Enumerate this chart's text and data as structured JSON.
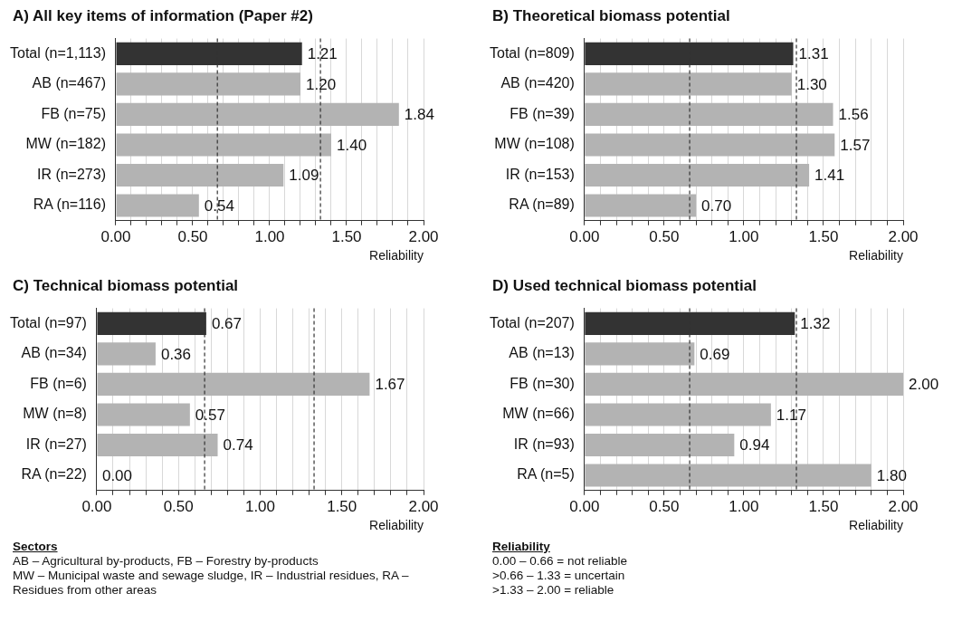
{
  "chart_data": [
    {
      "type": "bar",
      "orientation": "horizontal",
      "title": "A) All key items of information (Paper #2)",
      "xlabel": "Reliability",
      "categories": [
        "Total (n=1,113)",
        "AB (n=467)",
        "FB (n=75)",
        "MW (n=182)",
        "IR (n=273)",
        "RA (n=116)"
      ],
      "values": [
        1.21,
        1.2,
        1.84,
        1.4,
        1.09,
        0.54
      ],
      "value_labels": [
        "1.21",
        "1.20",
        "1.84",
        "1.40",
        "1.09",
        "0.54"
      ],
      "colors": [
        "#333333",
        "#b3b3b3",
        "#b3b3b3",
        "#b3b3b3",
        "#b3b3b3",
        "#b3b3b3"
      ],
      "xlim": [
        0,
        2
      ],
      "xticks": [
        {
          "value": 0,
          "label": "0.00"
        },
        {
          "value": 0.1,
          "label": null
        },
        {
          "value": 0.2,
          "label": null
        },
        {
          "value": 0.3,
          "label": null
        },
        {
          "value": 0.4,
          "label": null
        },
        {
          "value": 0.5,
          "label": "0.50"
        },
        {
          "value": 0.6,
          "label": null
        },
        {
          "value": 0.7,
          "label": null
        },
        {
          "value": 0.8,
          "label": null
        },
        {
          "value": 0.9,
          "label": null
        },
        {
          "value": 1,
          "label": "1.00"
        },
        {
          "value": 1.1,
          "label": null
        },
        {
          "value": 1.2,
          "label": null
        },
        {
          "value": 1.3,
          "label": null
        },
        {
          "value": 1.4,
          "label": null
        },
        {
          "value": 1.5,
          "label": "1.50"
        },
        {
          "value": 1.6,
          "label": null
        },
        {
          "value": 1.7,
          "label": null
        },
        {
          "value": 1.8,
          "label": null
        },
        {
          "value": 1.9,
          "label": null
        },
        {
          "value": 2,
          "label": "2.00"
        }
      ],
      "grid": "x",
      "legend": false,
      "ref_lines": [
        {
          "axis": "x",
          "value": 0.66,
          "color": "#333333",
          "line_style": "dashed"
        },
        {
          "axis": "x",
          "value": 1.33,
          "color": "#333333",
          "line_style": "dashed"
        }
      ]
    },
    {
      "type": "bar",
      "orientation": "horizontal",
      "title": "B) Theoretical biomass potential",
      "xlabel": "Reliability",
      "categories": [
        "Total (n=809)",
        "AB (n=420)",
        "FB (n=39)",
        "MW (n=108)",
        "IR (n=153)",
        "RA (n=89)"
      ],
      "values": [
        1.31,
        1.3,
        1.56,
        1.57,
        1.41,
        0.7
      ],
      "value_labels": [
        "1.31",
        "1.30",
        "1.56",
        "1.57",
        "1.41",
        "0.70"
      ],
      "colors": [
        "#333333",
        "#b3b3b3",
        "#b3b3b3",
        "#b3b3b3",
        "#b3b3b3",
        "#b3b3b3"
      ],
      "xlim": [
        0,
        2
      ],
      "xticks": [
        {
          "value": 0,
          "label": "0.00"
        },
        {
          "value": 0.1,
          "label": null
        },
        {
          "value": 0.2,
          "label": null
        },
        {
          "value": 0.3,
          "label": null
        },
        {
          "value": 0.4,
          "label": null
        },
        {
          "value": 0.5,
          "label": "0.50"
        },
        {
          "value": 0.6,
          "label": null
        },
        {
          "value": 0.7,
          "label": null
        },
        {
          "value": 0.8,
          "label": null
        },
        {
          "value": 0.9,
          "label": null
        },
        {
          "value": 1,
          "label": "1.00"
        },
        {
          "value": 1.1,
          "label": null
        },
        {
          "value": 1.2,
          "label": null
        },
        {
          "value": 1.3,
          "label": null
        },
        {
          "value": 1.4,
          "label": null
        },
        {
          "value": 1.5,
          "label": "1.50"
        },
        {
          "value": 1.6,
          "label": null
        },
        {
          "value": 1.7,
          "label": null
        },
        {
          "value": 1.8,
          "label": null
        },
        {
          "value": 1.9,
          "label": null
        },
        {
          "value": 2,
          "label": "2.00"
        }
      ],
      "grid": "x",
      "legend": false,
      "ref_lines": [
        {
          "axis": "x",
          "value": 0.66,
          "color": "#333333",
          "line_style": "dashed"
        },
        {
          "axis": "x",
          "value": 1.33,
          "color": "#333333",
          "line_style": "dashed"
        }
      ]
    },
    {
      "type": "bar",
      "orientation": "horizontal",
      "title": "C) Technical biomass potential",
      "xlabel": "Reliability",
      "categories": [
        "Total (n=97)",
        "AB (n=34)",
        "FB (n=6)",
        "MW (n=8)",
        "IR (n=27)",
        "RA (n=22)"
      ],
      "values": [
        0.67,
        0.36,
        1.67,
        0.57,
        0.74,
        0.0
      ],
      "value_labels": [
        "0.67",
        "0.36",
        "1.67",
        "0.57",
        "0.74",
        "0.00"
      ],
      "colors": [
        "#333333",
        "#b3b3b3",
        "#b3b3b3",
        "#b3b3b3",
        "#b3b3b3",
        "#b3b3b3"
      ],
      "xlim": [
        0,
        2
      ],
      "xticks": [
        {
          "value": 0,
          "label": "0.00"
        },
        {
          "value": 0.1,
          "label": null
        },
        {
          "value": 0.2,
          "label": null
        },
        {
          "value": 0.3,
          "label": null
        },
        {
          "value": 0.4,
          "label": null
        },
        {
          "value": 0.5,
          "label": "0.50"
        },
        {
          "value": 0.6,
          "label": null
        },
        {
          "value": 0.7,
          "label": null
        },
        {
          "value": 0.8,
          "label": null
        },
        {
          "value": 0.9,
          "label": null
        },
        {
          "value": 1,
          "label": "1.00"
        },
        {
          "value": 1.1,
          "label": null
        },
        {
          "value": 1.2,
          "label": null
        },
        {
          "value": 1.3,
          "label": null
        },
        {
          "value": 1.4,
          "label": null
        },
        {
          "value": 1.5,
          "label": "1.50"
        },
        {
          "value": 1.6,
          "label": null
        },
        {
          "value": 1.7,
          "label": null
        },
        {
          "value": 1.8,
          "label": null
        },
        {
          "value": 1.9,
          "label": null
        },
        {
          "value": 2,
          "label": "2.00"
        }
      ],
      "grid": "x",
      "legend": false,
      "ref_lines": [
        {
          "axis": "x",
          "value": 0.66,
          "color": "#333333",
          "line_style": "dashed"
        },
        {
          "axis": "x",
          "value": 1.33,
          "color": "#333333",
          "line_style": "dashed"
        }
      ],
      "annotations": [
        "Sectors",
        "AB – Agricultural by-products, FB – Forestry by-products",
        "MW – Municipal waste and sewage sludge, IR – Industrial residues, RA – Residues from other areas"
      ]
    },
    {
      "type": "bar",
      "orientation": "horizontal",
      "title": "D) Used technical biomass potential",
      "xlabel": "Reliability",
      "categories": [
        "Total (n=207)",
        "AB (n=13)",
        "FB (n=30)",
        "MW (n=66)",
        "IR (n=93)",
        "RA (n=5)"
      ],
      "values": [
        1.32,
        0.69,
        2.0,
        1.17,
        0.94,
        1.8
      ],
      "value_labels": [
        "1.32",
        "0.69",
        "2.00",
        "1.17",
        "0.94",
        "1.80"
      ],
      "colors": [
        "#333333",
        "#b3b3b3",
        "#b3b3b3",
        "#b3b3b3",
        "#b3b3b3",
        "#b3b3b3"
      ],
      "xlim": [
        0,
        2
      ],
      "xticks": [
        {
          "value": 0,
          "label": "0.00"
        },
        {
          "value": 0.1,
          "label": null
        },
        {
          "value": 0.2,
          "label": null
        },
        {
          "value": 0.3,
          "label": null
        },
        {
          "value": 0.4,
          "label": null
        },
        {
          "value": 0.5,
          "label": "0.50"
        },
        {
          "value": 0.6,
          "label": null
        },
        {
          "value": 0.7,
          "label": null
        },
        {
          "value": 0.8,
          "label": null
        },
        {
          "value": 0.9,
          "label": null
        },
        {
          "value": 1,
          "label": "1.00"
        },
        {
          "value": 1.1,
          "label": null
        },
        {
          "value": 1.2,
          "label": null
        },
        {
          "value": 1.3,
          "label": null
        },
        {
          "value": 1.4,
          "label": null
        },
        {
          "value": 1.5,
          "label": "1.50"
        },
        {
          "value": 1.6,
          "label": null
        },
        {
          "value": 1.7,
          "label": null
        },
        {
          "value": 1.8,
          "label": null
        },
        {
          "value": 1.9,
          "label": null
        },
        {
          "value": 2,
          "label": "2.00"
        }
      ],
      "grid": "x",
      "legend": false,
      "ref_lines": [
        {
          "axis": "x",
          "value": 0.66,
          "color": "#333333",
          "line_style": "dashed"
        },
        {
          "axis": "x",
          "value": 1.33,
          "color": "#333333",
          "line_style": "dashed"
        }
      ],
      "annotations": [
        "Reliability",
        "0.00 – 0.66 = not reliable",
        ">0.66 – 1.33 = uncertain",
        ">1.33 – 2.00 = reliable"
      ]
    }
  ]
}
